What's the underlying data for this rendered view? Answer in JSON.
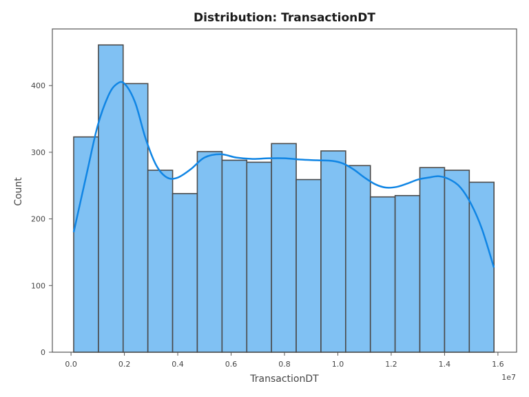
{
  "chart_data": {
    "type": "bar",
    "title": "Distribution: TransactionDT",
    "xlabel": "TransactionDT",
    "ylabel": "Count",
    "x_offset_label": "1e7",
    "xlim": [
      -0.07,
      1.67
    ],
    "ylim": [
      0,
      485
    ],
    "x_ticks": [
      0.0,
      0.2,
      0.4,
      0.6,
      0.8,
      1.0,
      1.2,
      1.4,
      1.6
    ],
    "x_tick_labels": [
      "0.0",
      "0.2",
      "0.4",
      "0.6",
      "0.8",
      "1.0",
      "1.2",
      "1.4",
      "1.6"
    ],
    "y_ticks": [
      0,
      100,
      200,
      300,
      400
    ],
    "y_tick_labels": [
      "0",
      "100",
      "200",
      "300",
      "400"
    ],
    "bins": {
      "edges": [
        0.01,
        0.1027,
        0.1953,
        0.288,
        0.3807,
        0.4733,
        0.566,
        0.6587,
        0.7513,
        0.844,
        0.9367,
        1.0293,
        1.122,
        1.2147,
        1.3073,
        1.4,
        1.4927,
        1.5853
      ],
      "counts": [
        323,
        461,
        403,
        273,
        238,
        301,
        288,
        285,
        313,
        259,
        302,
        280,
        233,
        235,
        277,
        273,
        255
      ]
    },
    "kde": {
      "x": [
        0.01,
        0.06,
        0.1,
        0.14,
        0.17,
        0.2,
        0.24,
        0.28,
        0.32,
        0.36,
        0.4,
        0.45,
        0.5,
        0.56,
        0.62,
        0.68,
        0.74,
        0.8,
        0.86,
        0.92,
        0.98,
        1.02,
        1.06,
        1.1,
        1.14,
        1.18,
        1.22,
        1.26,
        1.3,
        1.34,
        1.38,
        1.42,
        1.46,
        1.5,
        1.54,
        1.585
      ],
      "y": [
        180,
        270,
        340,
        385,
        402,
        403,
        375,
        320,
        280,
        262,
        262,
        275,
        292,
        297,
        292,
        290,
        291,
        291,
        289,
        288,
        287,
        283,
        274,
        262,
        252,
        247,
        248,
        253,
        259,
        262,
        264,
        259,
        247,
        222,
        185,
        127
      ]
    },
    "grid": false,
    "colors": {
      "bar_fill": "#80c1f3",
      "bar_edge": "#4a4a4a",
      "kde_line": "#1085e4",
      "frame": "#555555"
    }
  }
}
